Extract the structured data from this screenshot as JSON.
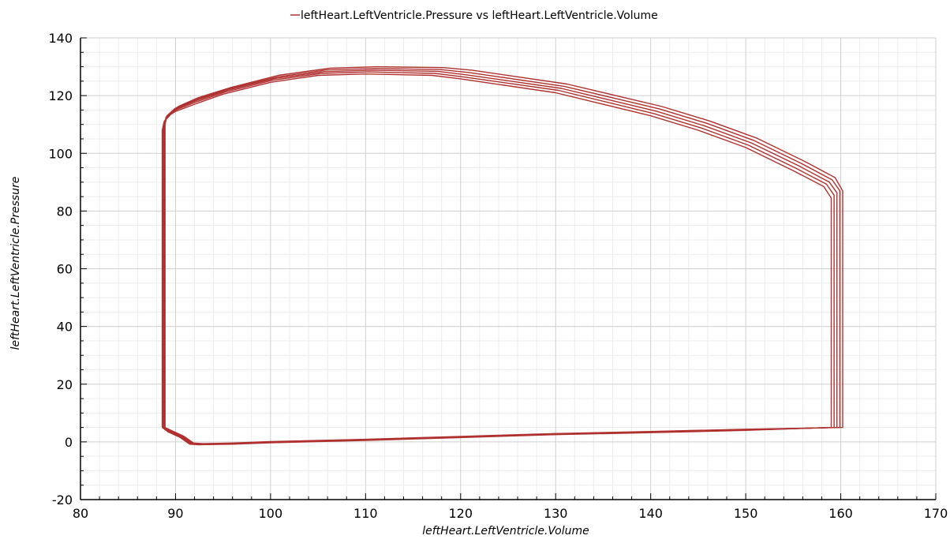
{
  "chart_data": {
    "type": "line",
    "legend": {
      "entry": "leftHeart.LeftVentricle.Pressure vs leftHeart.LeftVentricle.Volume",
      "placement": "top-center",
      "color": "#b03030"
    },
    "xlabel": "leftHeart.LeftVentricle.Volume",
    "ylabel": "leftHeart.LeftVentricle.Pressure",
    "xlim": [
      80,
      170
    ],
    "ylim": [
      -20,
      140
    ],
    "x_ticks": [
      80,
      90,
      100,
      110,
      120,
      130,
      140,
      150,
      160,
      170
    ],
    "y_ticks": [
      -20,
      0,
      20,
      40,
      60,
      80,
      100,
      120,
      140
    ],
    "x_tick_labels": [
      "80",
      "90",
      "100",
      "110",
      "120",
      "130",
      "140",
      "150",
      "160",
      "170"
    ],
    "y_tick_labels": [
      "-20",
      "0",
      "20",
      "40",
      "60",
      "80",
      "100",
      "120",
      "140"
    ],
    "grid": true,
    "series_color": "#b03030",
    "series": [
      {
        "points": [
          [
            88.6,
            5.0
          ],
          [
            89.2,
            3.5
          ],
          [
            90.5,
            1.5
          ],
          [
            91.5,
            -0.8
          ],
          [
            92.5,
            -1.0
          ],
          [
            96,
            -0.8
          ],
          [
            100,
            -0.3
          ],
          [
            110,
            0.5
          ],
          [
            120,
            1.5
          ],
          [
            130,
            2.5
          ],
          [
            140,
            3.2
          ],
          [
            150,
            4.0
          ],
          [
            159.0,
            5.0
          ],
          [
            159.0,
            84.5
          ],
          [
            158.2,
            88.5
          ],
          [
            155,
            94
          ],
          [
            150,
            102
          ],
          [
            145,
            108
          ],
          [
            140,
            113
          ],
          [
            130,
            121
          ],
          [
            120,
            125.8
          ],
          [
            117,
            127.0
          ],
          [
            110,
            127.5
          ],
          [
            105,
            127
          ],
          [
            100,
            124.6
          ],
          [
            95,
            120.5
          ],
          [
            92,
            117
          ],
          [
            90,
            114.5
          ],
          [
            89.5,
            113.5
          ],
          [
            88.8,
            111
          ],
          [
            88.6,
            108
          ],
          [
            88.6,
            5.0
          ]
        ]
      },
      {
        "points": [
          [
            88.7,
            5.0
          ],
          [
            89.3,
            3.6
          ],
          [
            90.6,
            1.6
          ],
          [
            91.6,
            -0.7
          ],
          [
            92.6,
            -0.9
          ],
          [
            96,
            -0.7
          ],
          [
            100,
            -0.2
          ],
          [
            110,
            0.6
          ],
          [
            120,
            1.6
          ],
          [
            130,
            2.6
          ],
          [
            140,
            3.3
          ],
          [
            150,
            4.1
          ],
          [
            159.3,
            5.0
          ],
          [
            159.3,
            85.5
          ],
          [
            158.5,
            89.3
          ],
          [
            155.3,
            94.8
          ],
          [
            150.3,
            102.8
          ],
          [
            145.3,
            108.8
          ],
          [
            140.3,
            113.8
          ],
          [
            130.3,
            121.8
          ],
          [
            120.3,
            126.5
          ],
          [
            117.3,
            127.7
          ],
          [
            110.3,
            128.2
          ],
          [
            105.3,
            127.7
          ],
          [
            100.2,
            125.3
          ],
          [
            95.2,
            121.2
          ],
          [
            92.1,
            117.7
          ],
          [
            90.1,
            115.1
          ],
          [
            89.6,
            114.1
          ],
          [
            88.9,
            111.5
          ],
          [
            88.7,
            108.5
          ],
          [
            88.7,
            5.0
          ]
        ]
      },
      {
        "points": [
          [
            88.8,
            5.0
          ],
          [
            89.4,
            3.7
          ],
          [
            90.7,
            1.7
          ],
          [
            91.7,
            -0.6
          ],
          [
            92.7,
            -0.8
          ],
          [
            96,
            -0.6
          ],
          [
            100,
            -0.1
          ],
          [
            110,
            0.7
          ],
          [
            120,
            1.7
          ],
          [
            130,
            2.7
          ],
          [
            140,
            3.4
          ],
          [
            150,
            4.2
          ],
          [
            159.6,
            5.0
          ],
          [
            159.6,
            86.3
          ],
          [
            158.8,
            90.0
          ],
          [
            155.6,
            95.6
          ],
          [
            150.6,
            103.6
          ],
          [
            145.6,
            109.6
          ],
          [
            140.6,
            114.6
          ],
          [
            130.6,
            122.5
          ],
          [
            120.6,
            127.2
          ],
          [
            117.6,
            128.4
          ],
          [
            110.6,
            128.8
          ],
          [
            105.6,
            128.3
          ],
          [
            100.4,
            125.9
          ],
          [
            95.4,
            121.8
          ],
          [
            92.2,
            118.3
          ],
          [
            90.2,
            115.6
          ],
          [
            89.7,
            114.6
          ],
          [
            89.0,
            112.0
          ],
          [
            88.8,
            109.0
          ],
          [
            88.8,
            5.0
          ]
        ]
      },
      {
        "points": [
          [
            88.8,
            5.0
          ],
          [
            89.5,
            3.8
          ],
          [
            90.8,
            1.8
          ],
          [
            91.8,
            -0.5
          ],
          [
            92.8,
            -0.7
          ],
          [
            96,
            -0.5
          ],
          [
            100,
            0.0
          ],
          [
            110,
            0.8
          ],
          [
            120,
            1.8
          ],
          [
            130,
            2.8
          ],
          [
            140,
            3.5
          ],
          [
            150,
            4.3
          ],
          [
            159.9,
            5.0
          ],
          [
            159.9,
            87.0
          ],
          [
            159.1,
            90.8
          ],
          [
            155.9,
            96.4
          ],
          [
            150.9,
            104.4
          ],
          [
            145.9,
            110.4
          ],
          [
            140.9,
            115.4
          ],
          [
            130.9,
            123.2
          ],
          [
            120.9,
            128.0
          ],
          [
            117.9,
            129.0
          ],
          [
            110.9,
            129.4
          ],
          [
            105.9,
            128.9
          ],
          [
            100.6,
            126.4
          ],
          [
            95.6,
            122.3
          ],
          [
            92.3,
            118.8
          ],
          [
            90.3,
            116.0
          ],
          [
            89.8,
            115.0
          ],
          [
            89.0,
            112.5
          ],
          [
            88.8,
            109.5
          ],
          [
            88.8,
            5.0
          ]
        ]
      },
      {
        "points": [
          [
            88.9,
            5.0
          ],
          [
            89.6,
            3.9
          ],
          [
            90.9,
            1.9
          ],
          [
            91.9,
            -0.4
          ],
          [
            92.9,
            -0.6
          ],
          [
            96,
            -0.4
          ],
          [
            100,
            0.1
          ],
          [
            110,
            0.9
          ],
          [
            120,
            1.9
          ],
          [
            130,
            2.9
          ],
          [
            140,
            3.6
          ],
          [
            150,
            4.4
          ],
          [
            160.2,
            5.0
          ],
          [
            160.2,
            87.0
          ],
          [
            159.4,
            91.6
          ],
          [
            156.2,
            97.2
          ],
          [
            151.2,
            105.2
          ],
          [
            146.2,
            111.2
          ],
          [
            141.2,
            116.2
          ],
          [
            131.2,
            124.0
          ],
          [
            121.2,
            128.8
          ],
          [
            118.2,
            129.7
          ],
          [
            111.2,
            130.0
          ],
          [
            106.2,
            129.5
          ],
          [
            100.8,
            127.0
          ],
          [
            95.8,
            122.8
          ],
          [
            92.4,
            119.3
          ],
          [
            90.4,
            116.4
          ],
          [
            89.9,
            115.4
          ],
          [
            89.1,
            113.0
          ],
          [
            88.9,
            110.0
          ],
          [
            88.9,
            5.0
          ]
        ]
      }
    ]
  }
}
